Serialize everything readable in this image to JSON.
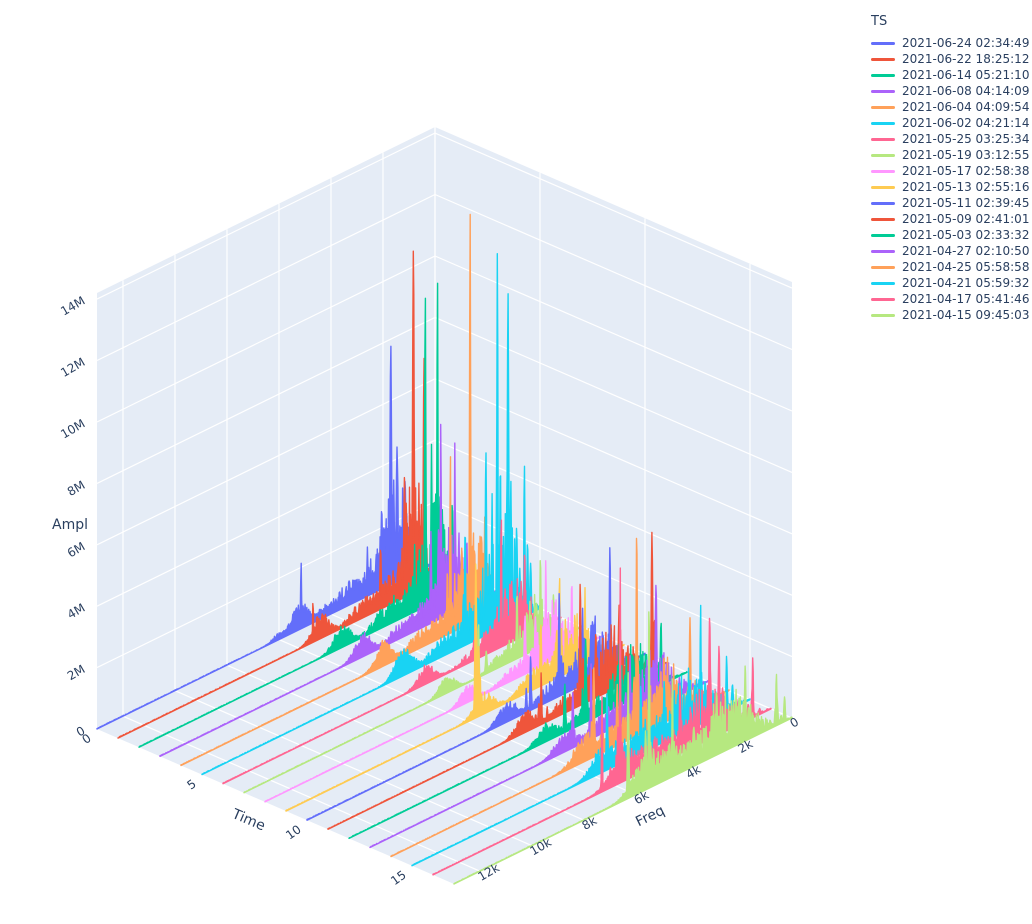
{
  "chart_data": {
    "type": "line3d-ridgeline",
    "legend": {
      "title": "TS"
    },
    "colors": {
      "pane": "#e5ecf6",
      "grid": "#ffffff",
      "text": "#2a3f5f",
      "background": "#ffffff"
    },
    "axes": {
      "time": {
        "title": "Time",
        "tick_labels": [
          "0",
          "5",
          "10",
          "15"
        ],
        "tick_values": [
          0,
          5,
          10,
          15
        ],
        "range": [
          0,
          17
        ]
      },
      "freq": {
        "title": "Freq",
        "tick_labels": [
          "0",
          "2k",
          "4k",
          "6k",
          "8k",
          "10k",
          "12k"
        ],
        "tick_values": [
          0,
          2000,
          4000,
          6000,
          8000,
          10000,
          12000
        ],
        "range": [
          0,
          13000
        ]
      },
      "ampl": {
        "title": "Ampl",
        "tick_labels": [
          "0",
          "2M",
          "4M",
          "6M",
          "8M",
          "10M",
          "12M",
          "14M"
        ],
        "tick_values": [
          0,
          2000000,
          4000000,
          6000000,
          8000000,
          10000000,
          12000000,
          14000000
        ],
        "range": [
          0,
          14200000
        ]
      }
    },
    "series": [
      {
        "ts": "2021-06-24 02:34:49",
        "color": "#636efa",
        "t": 0,
        "seed": 101,
        "humps": [
          [
            1500,
            420,
            1.9,
            0.8
          ],
          [
            2300,
            400,
            0.5,
            0.7
          ],
          [
            3300,
            500,
            0.45,
            0.65
          ],
          [
            4300,
            350,
            0.2,
            0.5
          ],
          [
            5200,
            300,
            0.68,
            0.3
          ],
          [
            6050,
            200,
            0.15,
            0.4
          ]
        ],
        "peaks": [
          [
            1700,
            7.8
          ],
          [
            1460,
            4.4
          ],
          [
            1150,
            3.2
          ],
          [
            2050,
            2.8
          ],
          [
            5150,
            2.2
          ],
          [
            2600,
            1.6
          ]
        ],
        "comb": {
          "f0": 430,
          "amp": 0.5,
          "lo": 900,
          "hi": 3000
        }
      },
      {
        "ts": "2021-06-22 18:25:12",
        "color": "#ef553b",
        "t": 1,
        "seed": 202,
        "humps": [
          [
            1600,
            400,
            2.1,
            0.8
          ],
          [
            2500,
            450,
            0.55,
            0.7
          ],
          [
            3500,
            500,
            0.4,
            0.6
          ],
          [
            5200,
            300,
            0.65,
            0.3
          ]
        ],
        "peaks": [
          [
            1640,
            11.2
          ],
          [
            1230,
            7.5
          ],
          [
            1980,
            4.0
          ],
          [
            2900,
            2.0
          ],
          [
            5500,
            1.4
          ]
        ],
        "comb": {
          "f0": 450,
          "amp": 0.5,
          "lo": 900,
          "hi": 3200
        }
      },
      {
        "ts": "2021-06-14 05:21:10",
        "color": "#00cc96",
        "t": 2,
        "seed": 303,
        "humps": [
          [
            1650,
            450,
            2.0,
            0.8
          ],
          [
            2700,
            500,
            0.5,
            0.7
          ],
          [
            3600,
            450,
            0.35,
            0.6
          ],
          [
            5200,
            300,
            0.6,
            0.3
          ]
        ],
        "peaks": [
          [
            1520,
            10.5
          ],
          [
            1990,
            10.2
          ],
          [
            1750,
            5.2
          ],
          [
            950,
            3.0
          ],
          [
            2400,
            2.2
          ]
        ],
        "comb": {
          "f0": 440,
          "amp": 0.5,
          "lo": 900,
          "hi": 3000
        }
      },
      {
        "ts": "2021-06-08 04:14:09",
        "color": "#ab63fa",
        "t": 3,
        "seed": 404,
        "humps": [
          [
            1750,
            500,
            1.5,
            0.8
          ],
          [
            2800,
            500,
            0.45,
            0.7
          ],
          [
            3800,
            400,
            0.3,
            0.55
          ],
          [
            5200,
            300,
            0.62,
            0.3
          ]
        ],
        "peaks": [
          [
            2200,
            6.4
          ],
          [
            1660,
            5.5
          ],
          [
            2580,
            3.0
          ],
          [
            1200,
            2.2
          ]
        ],
        "comb": {
          "f0": 420,
          "amp": 0.45,
          "lo": 900,
          "hi": 3200
        }
      },
      {
        "ts": "2021-06-04 04:09:54",
        "color": "#ffa15a",
        "t": 4,
        "seed": 505,
        "humps": [
          [
            1750,
            480,
            1.8,
            0.8
          ],
          [
            2900,
            500,
            0.5,
            0.7
          ],
          [
            3900,
            400,
            0.3,
            0.55
          ],
          [
            5200,
            300,
            0.64,
            0.3
          ]
        ],
        "peaks": [
          [
            1880,
            13.4
          ],
          [
            2640,
            5.9
          ],
          [
            1310,
            3.4
          ],
          [
            2200,
            2.6
          ]
        ],
        "comb": {
          "f0": 430,
          "amp": 0.5,
          "lo": 900,
          "hi": 3200
        }
      },
      {
        "ts": "2021-06-02 04:21:14",
        "color": "#19d3f3",
        "t": 5,
        "seed": 606,
        "humps": [
          [
            1500,
            550,
            2.3,
            0.85
          ],
          [
            2700,
            550,
            0.6,
            0.7
          ],
          [
            3800,
            450,
            0.35,
            0.6
          ],
          [
            5250,
            320,
            0.7,
            0.35
          ]
        ],
        "peaks": [
          [
            1640,
            12.4
          ],
          [
            1230,
            10.8
          ],
          [
            2080,
            6.0
          ],
          [
            600,
            5.0
          ],
          [
            2880,
            3.9
          ],
          [
            900,
            3.0
          ]
        ],
        "comb": {
          "f0": 410,
          "amp": 0.6,
          "lo": 500,
          "hi": 3200
        }
      },
      {
        "ts": "2021-05-25 03:25:34",
        "color": "#ff6692",
        "t": 6,
        "seed": 707,
        "humps": [
          [
            1800,
            550,
            1.25,
            0.8
          ],
          [
            3000,
            550,
            0.4,
            0.65
          ],
          [
            5200,
            300,
            0.5,
            0.3
          ]
        ],
        "peaks": [
          [
            2300,
            4.5
          ],
          [
            1400,
            3.0
          ],
          [
            3290,
            2.1
          ],
          [
            1900,
            2.0
          ]
        ],
        "comb": {
          "f0": 430,
          "amp": 0.45,
          "lo": 800,
          "hi": 3500
        }
      },
      {
        "ts": "2021-05-19 03:12:55",
        "color": "#b6e880",
        "t": 7,
        "seed": 808,
        "humps": [
          [
            1700,
            500,
            1.0,
            0.8
          ],
          [
            2900,
            500,
            0.35,
            0.6
          ],
          [
            5200,
            280,
            0.45,
            0.3
          ]
        ],
        "peaks": [
          [
            1600,
            3.0
          ],
          [
            2500,
            2.2
          ],
          [
            3980,
            1.9
          ],
          [
            1100,
            1.5
          ]
        ],
        "comb": {
          "f0": 450,
          "amp": 0.4,
          "lo": 800,
          "hi": 3500
        }
      },
      {
        "ts": "2021-05-17 02:58:38",
        "color": "#ff97ff",
        "t": 8,
        "seed": 909,
        "humps": [
          [
            1900,
            550,
            1.05,
            0.8
          ],
          [
            3200,
            550,
            0.35,
            0.6
          ],
          [
            5200,
            280,
            0.45,
            0.3
          ]
        ],
        "peaks": [
          [
            2200,
            3.4
          ],
          [
            1200,
            2.3
          ],
          [
            3000,
            1.9
          ],
          [
            2600,
            1.7
          ]
        ],
        "comb": {
          "f0": 440,
          "amp": 0.4,
          "lo": 800,
          "hi": 3800
        }
      },
      {
        "ts": "2021-05-13 02:55:16",
        "color": "#fecb52",
        "t": 9,
        "seed": 1010,
        "humps": [
          [
            2000,
            600,
            1.1,
            0.8
          ],
          [
            3400,
            550,
            0.4,
            0.6
          ],
          [
            5400,
            350,
            0.5,
            0.35
          ]
        ],
        "peaks": [
          [
            2480,
            3.4
          ],
          [
            5700,
            5.1
          ],
          [
            1500,
            2.5
          ],
          [
            3200,
            2.0
          ]
        ],
        "comb": {
          "f0": 460,
          "amp": 0.45,
          "lo": 800,
          "hi": 4000
        }
      },
      {
        "ts": "2021-05-11 02:39:45",
        "color": "#636efa",
        "t": 10,
        "seed": 1111,
        "humps": [
          [
            1900,
            600,
            1.1,
            0.8
          ],
          [
            3400,
            600,
            0.42,
            0.6
          ],
          [
            5300,
            350,
            0.5,
            0.35
          ]
        ],
        "peaks": [
          [
            1350,
            4.1
          ],
          [
            3300,
            3.4
          ],
          [
            2400,
            2.5
          ],
          [
            4400,
            1.8
          ]
        ],
        "comb": {
          "f0": 440,
          "amp": 0.45,
          "lo": 800,
          "hi": 4200
        }
      },
      {
        "ts": "2021-05-09 02:41:01",
        "color": "#ef553b",
        "t": 11,
        "seed": 1212,
        "humps": [
          [
            2000,
            650,
            1.15,
            0.8
          ],
          [
            3600,
            600,
            0.45,
            0.6
          ],
          [
            5400,
            350,
            0.5,
            0.35
          ]
        ],
        "peaks": [
          [
            540,
            4.5
          ],
          [
            3300,
            4.0
          ],
          [
            1800,
            2.7
          ],
          [
            2700,
            2.3
          ],
          [
            4800,
            1.7
          ]
        ],
        "comb": {
          "f0": 450,
          "amp": 0.5,
          "lo": 500,
          "hi": 4500
        }
      },
      {
        "ts": "2021-05-03 02:33:32",
        "color": "#00cc96",
        "t": 12,
        "seed": 1313,
        "humps": [
          [
            2100,
            650,
            1.0,
            0.8
          ],
          [
            3700,
            600,
            0.4,
            0.6
          ],
          [
            5400,
            350,
            0.45,
            0.35
          ]
        ],
        "peaks": [
          [
            3900,
            2.7
          ],
          [
            1000,
            2.1
          ],
          [
            2600,
            2.0
          ],
          [
            4700,
            1.6
          ]
        ],
        "comb": {
          "f0": 430,
          "amp": 0.45,
          "lo": 600,
          "hi": 4500
        }
      },
      {
        "ts": "2021-04-27 02:10:50",
        "color": "#ab63fa",
        "t": 13,
        "seed": 1414,
        "humps": [
          [
            2100,
            700,
            1.05,
            0.8
          ],
          [
            3800,
            650,
            0.42,
            0.6
          ],
          [
            5500,
            380,
            0.5,
            0.35
          ]
        ],
        "peaks": [
          [
            2000,
            4.0
          ],
          [
            4500,
            2.5
          ],
          [
            3000,
            2.1
          ],
          [
            5200,
            1.8
          ]
        ],
        "comb": {
          "f0": 440,
          "amp": 0.5,
          "lo": 600,
          "hi": 4800
        }
      },
      {
        "ts": "2021-04-25 05:58:58",
        "color": "#ffa15a",
        "t": 14,
        "seed": 1515,
        "humps": [
          [
            2300,
            750,
            1.1,
            0.8
          ],
          [
            4200,
            700,
            0.5,
            0.6
          ],
          [
            5600,
            400,
            0.55,
            0.4
          ]
        ],
        "peaks": [
          [
            3550,
            6.8
          ],
          [
            1500,
            3.0
          ],
          [
            5200,
            2.9
          ],
          [
            2500,
            2.3
          ],
          [
            4300,
            2.0
          ]
        ],
        "comb": {
          "f0": 450,
          "amp": 0.6,
          "lo": 500,
          "hi": 5200
        }
      },
      {
        "ts": "2021-04-21 05:59:32",
        "color": "#19d3f3",
        "t": 15,
        "seed": 1616,
        "humps": [
          [
            2300,
            800,
            1.1,
            0.8
          ],
          [
            4300,
            750,
            0.5,
            0.6
          ],
          [
            5700,
            400,
            0.55,
            0.4
          ]
        ],
        "peaks": [
          [
            1900,
            4.0
          ],
          [
            5500,
            2.6
          ],
          [
            4200,
            2.3
          ],
          [
            3300,
            2.0
          ],
          [
            900,
            1.8
          ]
        ],
        "comb": {
          "f0": 430,
          "amp": 0.6,
          "lo": 500,
          "hi": 5500
        }
      },
      {
        "ts": "2021-04-17 05:41:46",
        "color": "#ff6692",
        "t": 16,
        "seed": 1717,
        "humps": [
          [
            2400,
            800,
            1.1,
            0.8
          ],
          [
            4500,
            800,
            0.55,
            0.6
          ],
          [
            5800,
            420,
            0.6,
            0.4
          ]
        ],
        "peaks": [
          [
            5800,
            7.3
          ],
          [
            2360,
            4.0
          ],
          [
            6500,
            3.1
          ],
          [
            2000,
            2.9
          ],
          [
            3500,
            2.2
          ],
          [
            700,
            2.0
          ]
        ],
        "comb": {
          "f0": 440,
          "amp": 0.7,
          "lo": 400,
          "hi": 6200
        }
      },
      {
        "ts": "2021-04-15 09:45:03",
        "color": "#b6e880",
        "t": 17,
        "seed": 1818,
        "humps": [
          [
            2500,
            850,
            1.05,
            0.8
          ],
          [
            4600,
            850,
            0.55,
            0.6
          ],
          [
            5700,
            450,
            0.6,
            0.4
          ]
        ],
        "peaks": [
          [
            5500,
            6.1
          ],
          [
            6300,
            4.1
          ],
          [
            4600,
            3.3
          ],
          [
            1800,
            2.5
          ],
          [
            2900,
            2.1
          ],
          [
            600,
            1.7
          ]
        ],
        "comb": {
          "f0": 420,
          "amp": 0.75,
          "lo": 400,
          "hi": 6300
        }
      }
    ]
  }
}
